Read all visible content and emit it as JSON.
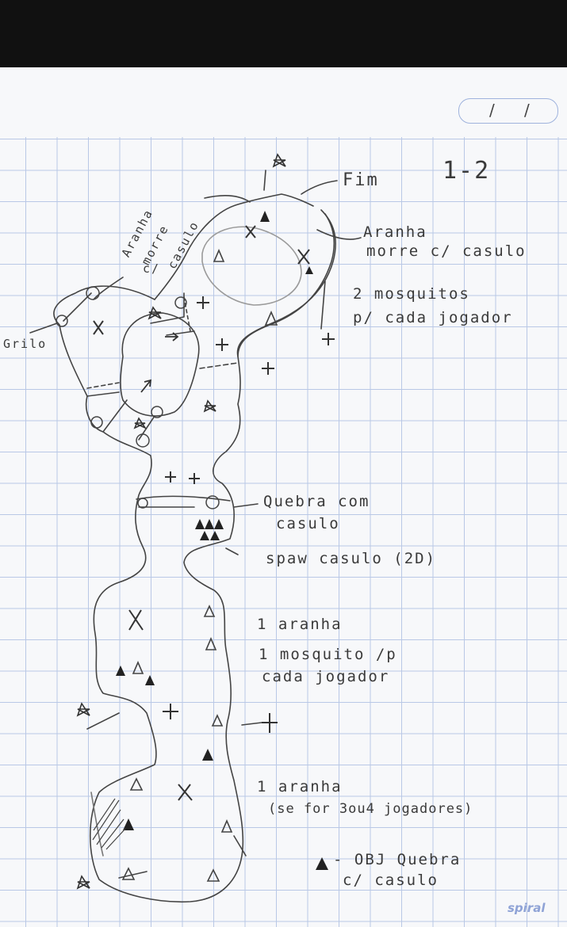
{
  "page": {
    "date_box": [
      "/",
      "/"
    ],
    "level_id": "1-2",
    "brand": "spiral"
  },
  "notes": {
    "fim": "Fim",
    "aranha_top_right": [
      "Aranha",
      "morre c/ casulo"
    ],
    "aranha_top_left": [
      "Aranha",
      "morre",
      "c/",
      "casulo"
    ],
    "grilo": "Grilo",
    "mosquitos": [
      "2 mosquitos",
      "p/ cada jogador"
    ],
    "quebra_casulo": [
      "Quebra com",
      "casulo"
    ],
    "spawn_casulo": "spaw casulo (2D)",
    "section_mid": [
      "1 aranha",
      "1 mosquito /p",
      "cada jogador"
    ],
    "section_bottom": [
      "1 aranha",
      "(se for 3ou4 jogadores)"
    ],
    "legend": [
      "- OBJ Quebra",
      "c/ casulo"
    ]
  },
  "colors": {
    "pencil": "#3a3a3a",
    "grid": "#b9c8e6",
    "paper": "#f7f8fa"
  }
}
